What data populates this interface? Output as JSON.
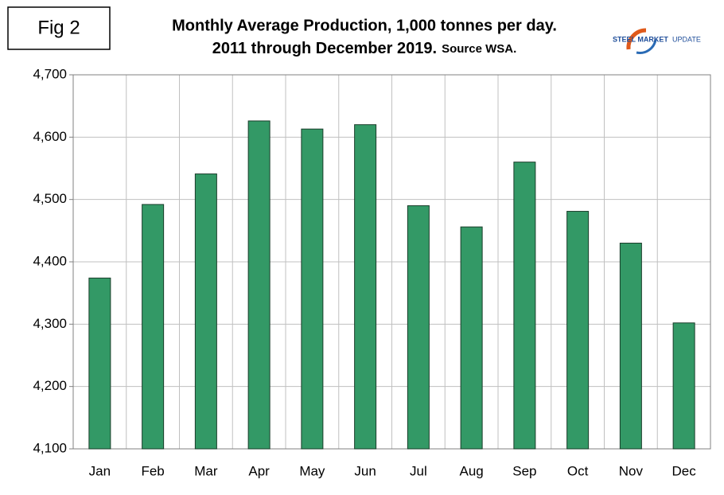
{
  "chart_data": {
    "type": "bar",
    "figure_label": "Fig 2",
    "title": "Monthly Average Production, 1,000 tonnes per day.",
    "subtitle": "2011 through December 2019.",
    "source": "Source WSA.",
    "logo": {
      "brand": "STEEL MARKET",
      "suffix": "UPDATE"
    },
    "categories": [
      "Jan",
      "Feb",
      "Mar",
      "Apr",
      "May",
      "Jun",
      "Jul",
      "Aug",
      "Sep",
      "Oct",
      "Nov",
      "Dec"
    ],
    "values": [
      4374,
      4492,
      4541,
      4626,
      4613,
      4620,
      4490,
      4456,
      4560,
      4481,
      4430,
      4302
    ],
    "color": "#339966",
    "ylim": [
      4100,
      4700
    ],
    "yticks": [
      {
        "value": 4100,
        "label": "4,100"
      },
      {
        "value": 4200,
        "label": "4,200"
      },
      {
        "value": 4300,
        "label": "4,300"
      },
      {
        "value": 4400,
        "label": "4,400"
      },
      {
        "value": 4500,
        "label": "4,500"
      },
      {
        "value": 4600,
        "label": "4,600"
      },
      {
        "value": 4700,
        "label": "4,700"
      }
    ],
    "grid": true
  }
}
